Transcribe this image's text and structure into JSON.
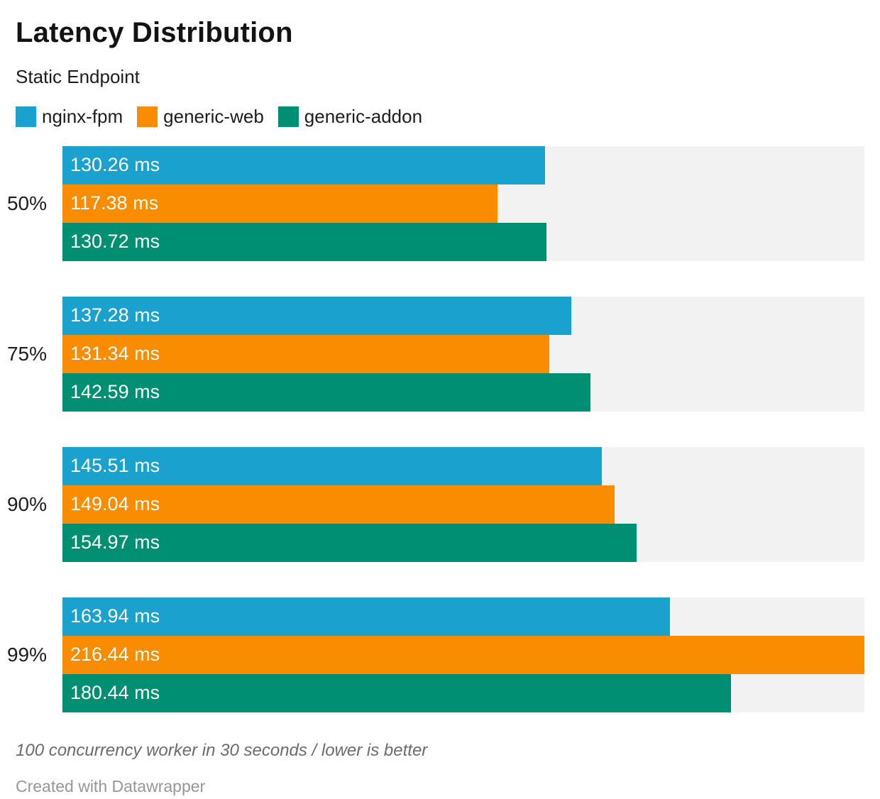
{
  "header": {
    "title": "Latency Distribution",
    "subtitle": "Static Endpoint"
  },
  "legend": [
    {
      "label": "nginx-fpm",
      "color": "#1BA1CE"
    },
    {
      "label": "generic-web",
      "color": "#F98C00"
    },
    {
      "label": "generic-addon",
      "color": "#008F72"
    }
  ],
  "chart_data": {
    "type": "bar",
    "orientation": "horizontal",
    "title": "Latency Distribution",
    "subtitle": "Static Endpoint",
    "categories": [
      "50%",
      "75%",
      "90%",
      "99%"
    ],
    "series": [
      {
        "name": "nginx-fpm",
        "color": "#1BA1CE",
        "values": [
          130.26,
          137.28,
          145.51,
          163.94
        ]
      },
      {
        "name": "generic-web",
        "color": "#F98C00",
        "values": [
          117.38,
          131.34,
          149.04,
          216.44
        ]
      },
      {
        "name": "generic-addon",
        "color": "#008F72",
        "values": [
          130.72,
          142.59,
          154.97,
          180.44
        ]
      }
    ],
    "value_suffix": " ms",
    "value_decimals": 2,
    "xlim": [
      0,
      216.44
    ],
    "track_color": "#F2F2F2",
    "grid": false,
    "legend_position": "top",
    "value_labels": "inside-start"
  },
  "footer": {
    "notes": "100 concurrency worker in 30 seconds / lower is better",
    "attribution": "Created with Datawrapper"
  }
}
